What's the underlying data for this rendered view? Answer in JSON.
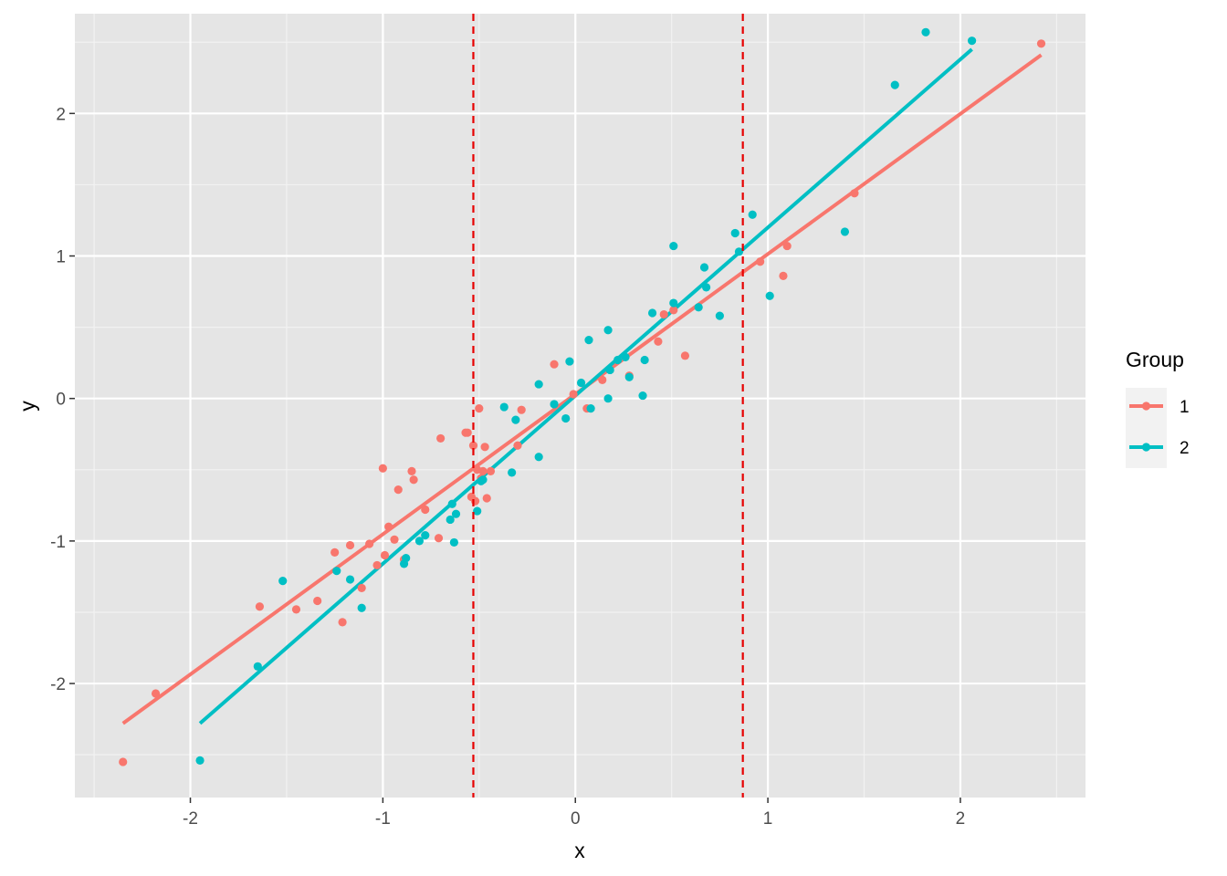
{
  "chart_data": {
    "type": "scatter",
    "xlabel": "x",
    "ylabel": "y",
    "xlim": [
      -2.6,
      2.65
    ],
    "ylim": [
      -2.8,
      2.7
    ],
    "x_ticks": [
      -2,
      -1,
      0,
      1,
      2
    ],
    "y_ticks": [
      -2,
      -1,
      0,
      1,
      2
    ],
    "x_tick_labels": [
      "-2",
      "-1",
      "0",
      "1",
      "2"
    ],
    "y_tick_labels": [
      "-2",
      "-1",
      "0",
      "1",
      "2"
    ],
    "grid": true,
    "background": "#E5E5E5",
    "legend": {
      "title": "Group",
      "placement": "right"
    },
    "vlines": [
      {
        "x": -0.53,
        "color": "#E60000",
        "style": "dashed"
      },
      {
        "x": 0.87,
        "color": "#E60000",
        "style": "dashed"
      }
    ],
    "series": [
      {
        "name": "1",
        "color": "#F8766D",
        "fit_line": {
          "x": [
            -2.35,
            2.42
          ],
          "y": [
            -2.28,
            2.41
          ]
        },
        "points": [
          [
            -2.35,
            -2.55
          ],
          [
            -2.18,
            -2.07
          ],
          [
            -1.64,
            -1.46
          ],
          [
            -1.45,
            -1.48
          ],
          [
            -1.34,
            -1.42
          ],
          [
            -1.25,
            -1.08
          ],
          [
            -1.21,
            -1.57
          ],
          [
            -1.17,
            -1.03
          ],
          [
            -1.11,
            -1.33
          ],
          [
            -1.07,
            -1.02
          ],
          [
            -1.03,
            -1.17
          ],
          [
            -1.0,
            -0.49
          ],
          [
            -0.99,
            -1.1
          ],
          [
            -0.97,
            -0.9
          ],
          [
            -0.94,
            -0.99
          ],
          [
            -0.92,
            -0.64
          ],
          [
            -0.89,
            -1.13
          ],
          [
            -0.85,
            -0.51
          ],
          [
            -0.84,
            -0.57
          ],
          [
            -0.78,
            -0.78
          ],
          [
            -0.71,
            -0.98
          ],
          [
            -0.7,
            -0.28
          ],
          [
            -0.57,
            -0.24
          ],
          [
            -0.56,
            -0.24
          ],
          [
            -0.54,
            -0.69
          ],
          [
            -0.53,
            -0.33
          ],
          [
            -0.52,
            -0.72
          ],
          [
            -0.51,
            -0.5
          ],
          [
            -0.5,
            -0.07
          ],
          [
            -0.49,
            -0.56
          ],
          [
            -0.48,
            -0.51
          ],
          [
            -0.47,
            -0.34
          ],
          [
            -0.46,
            -0.7
          ],
          [
            -0.44,
            -0.51
          ],
          [
            -0.3,
            -0.33
          ],
          [
            -0.28,
            -0.08
          ],
          [
            -0.11,
            0.24
          ],
          [
            -0.01,
            0.03
          ],
          [
            0.06,
            -0.07
          ],
          [
            0.14,
            0.13
          ],
          [
            0.28,
            0.16
          ],
          [
            0.43,
            0.4
          ],
          [
            0.46,
            0.59
          ],
          [
            0.51,
            0.62
          ],
          [
            0.57,
            0.3
          ],
          [
            0.96,
            0.96
          ],
          [
            1.08,
            0.86
          ],
          [
            1.1,
            1.07
          ],
          [
            1.45,
            1.44
          ],
          [
            2.42,
            2.49
          ]
        ]
      },
      {
        "name": "2",
        "color": "#00BFC4",
        "fit_line": {
          "x": [
            -1.95,
            2.06
          ],
          "y": [
            -2.28,
            2.45
          ]
        },
        "points": [
          [
            -1.95,
            -2.54
          ],
          [
            -1.65,
            -1.88
          ],
          [
            -1.52,
            -1.28
          ],
          [
            -1.24,
            -1.21
          ],
          [
            -1.17,
            -1.27
          ],
          [
            -1.11,
            -1.47
          ],
          [
            -0.89,
            -1.16
          ],
          [
            -0.88,
            -1.12
          ],
          [
            -0.81,
            -1.0
          ],
          [
            -0.78,
            -0.96
          ],
          [
            -0.65,
            -0.85
          ],
          [
            -0.64,
            -0.74
          ],
          [
            -0.63,
            -1.01
          ],
          [
            -0.62,
            -0.81
          ],
          [
            -0.51,
            -0.79
          ],
          [
            -0.49,
            -0.58
          ],
          [
            -0.48,
            -0.57
          ],
          [
            -0.37,
            -0.06
          ],
          [
            -0.33,
            -0.52
          ],
          [
            -0.31,
            -0.15
          ],
          [
            -0.19,
            -0.41
          ],
          [
            -0.19,
            0.1
          ],
          [
            -0.11,
            -0.04
          ],
          [
            -0.05,
            -0.14
          ],
          [
            -0.03,
            0.26
          ],
          [
            0.03,
            0.11
          ],
          [
            0.07,
            0.41
          ],
          [
            0.08,
            -0.07
          ],
          [
            0.17,
            0.48
          ],
          [
            0.17,
            0.0
          ],
          [
            0.18,
            0.2
          ],
          [
            0.22,
            0.27
          ],
          [
            0.26,
            0.29
          ],
          [
            0.28,
            0.15
          ],
          [
            0.35,
            0.02
          ],
          [
            0.36,
            0.27
          ],
          [
            0.4,
            0.6
          ],
          [
            0.51,
            1.07
          ],
          [
            0.51,
            0.67
          ],
          [
            0.64,
            0.64
          ],
          [
            0.67,
            0.92
          ],
          [
            0.68,
            0.78
          ],
          [
            0.75,
            0.58
          ],
          [
            0.83,
            1.16
          ],
          [
            0.85,
            1.03
          ],
          [
            0.92,
            1.29
          ],
          [
            1.01,
            0.72
          ],
          [
            1.4,
            1.17
          ],
          [
            1.66,
            2.2
          ],
          [
            1.82,
            2.57
          ],
          [
            2.06,
            2.51
          ]
        ]
      }
    ]
  }
}
